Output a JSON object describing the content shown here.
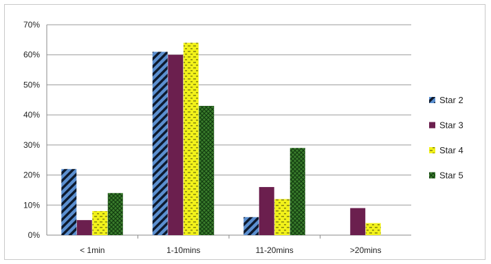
{
  "chart_data": {
    "type": "bar",
    "categories": [
      "< 1min",
      "1-10mins",
      "11-20mins",
      ">20mins"
    ],
    "series": [
      {
        "name": "Star 2",
        "values": [
          22,
          61,
          6,
          0
        ],
        "color": "#5b8fd0",
        "pattern": "diagonal-stripes"
      },
      {
        "name": "Star 3",
        "values": [
          5,
          60,
          16,
          9
        ],
        "color": "#6b1f4e",
        "pattern": "solid"
      },
      {
        "name": "Star 4",
        "values": [
          8,
          64,
          12,
          4
        ],
        "color": "#f2f21a",
        "pattern": "dots"
      },
      {
        "name": "Star 5",
        "values": [
          14,
          43,
          29,
          0
        ],
        "color": "#3a7d2c",
        "pattern": "crosshatch"
      }
    ],
    "ylim": [
      0,
      70
    ],
    "yticks": [
      0,
      10,
      20,
      30,
      40,
      50,
      60,
      70
    ],
    "ytick_labels": [
      "0%",
      "10%",
      "20%",
      "30%",
      "40%",
      "50%",
      "60%",
      "70%"
    ],
    "grid": true,
    "legend_position": "right",
    "title": "",
    "xlabel": "",
    "ylabel": ""
  }
}
